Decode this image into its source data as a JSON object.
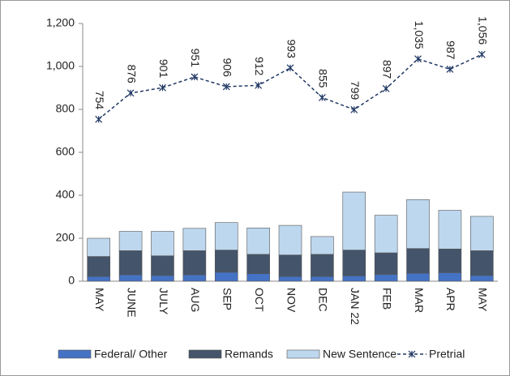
{
  "chart_data": {
    "type": "bar_line",
    "categories": [
      "MAY",
      "JUNE",
      "JULY",
      "AUG",
      "SEP",
      "OCT",
      "NOV",
      "DEC",
      "JAN 22",
      "FEB",
      "MAR",
      "APR",
      "MAY"
    ],
    "series": [
      {
        "name": "Federal/ Other",
        "color": "#4472c4",
        "type": "bar",
        "values": [
          22,
          30,
          27,
          30,
          42,
          35,
          22,
          22,
          25,
          32,
          37,
          40,
          27
        ]
      },
      {
        "name": "Remands",
        "color": "#44546a",
        "type": "bar",
        "values": [
          93,
          112,
          91,
          112,
          103,
          90,
          100,
          103,
          120,
          100,
          115,
          110,
          115
        ]
      },
      {
        "name": "New Sentence",
        "color": "#bdd7ee",
        "type": "bar",
        "values": [
          85,
          90,
          114,
          104,
          128,
          123,
          138,
          83,
          270,
          175,
          228,
          180,
          160
        ]
      },
      {
        "name": "Pretrial",
        "color": "#203864",
        "type": "line",
        "values": [
          754,
          876,
          901,
          951,
          906,
          912,
          993,
          855,
          799,
          897,
          1035,
          987,
          1056
        ],
        "value_labels": [
          "754",
          "876",
          "901",
          "951",
          "906",
          "912",
          "993",
          "855",
          "799",
          "897",
          "1,035",
          "987",
          "1,056"
        ]
      }
    ],
    "ylim": [
      0,
      1200
    ],
    "yticks": [
      0,
      200,
      400,
      600,
      800,
      {
        "value": 1000,
        "label": "1,000"
      },
      {
        "value": 1200,
        "label": "1,200"
      }
    ],
    "grid": false,
    "legend": "bottom"
  }
}
